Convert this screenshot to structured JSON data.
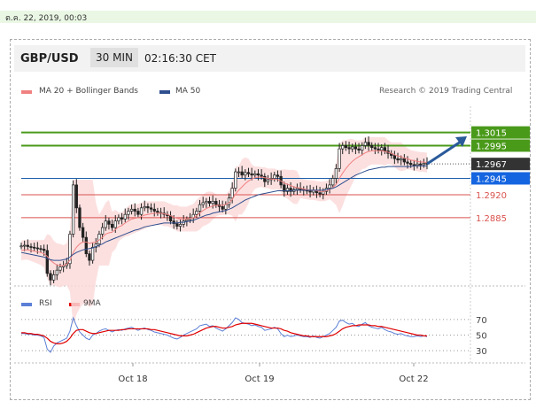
{
  "date_bar": "ต.ค. 22, 2019, 00:03",
  "header": {
    "pair": "GBP/USD",
    "timeframe": "30 MIN",
    "time": "02:16:30 CET"
  },
  "legend": {
    "ma20": "MA 20 + Bollinger Bands",
    "ma50": "MA 50",
    "credit": "Research © 2019 Trading Central",
    "rsi": "RSI",
    "rsi_ma": "9MA"
  },
  "colors": {
    "candle": "#222222",
    "bollinger_fill": "#fbdada",
    "ma20": "#f08080",
    "ma50": "#2f4f8f",
    "resistance": "#4a9a1a",
    "pivot": "#1b5faa",
    "support": "#d9534f",
    "last_price": "#333333",
    "rsi": "#5b7fd6",
    "rsi_ma": "#e00000",
    "arrow": "#2a5a9a"
  },
  "chart_data": {
    "type": "candlestick",
    "x_tick_labels": [
      "Oct 18",
      "Oct 19",
      "Oct 22"
    ],
    "price_levels": [
      {
        "value": 1.3015,
        "label": "1.3015",
        "kind": "resistance"
      },
      {
        "value": 1.2995,
        "label": "1.2995",
        "kind": "resistance"
      },
      {
        "value": 1.2967,
        "label": "1.2967",
        "kind": "last"
      },
      {
        "value": 1.2945,
        "label": "1.2945",
        "kind": "pivot"
      },
      {
        "value": 1.292,
        "label": "1.2920",
        "kind": "support"
      },
      {
        "value": 1.2885,
        "label": "1.2885",
        "kind": "support"
      }
    ],
    "y_range": [
      1.2785,
      1.3055
    ],
    "close": [
      1.2842,
      1.2843,
      1.2841,
      1.284,
      1.2839,
      1.2838,
      1.2837,
      1.2835,
      1.28,
      1.279,
      1.2798,
      1.2805,
      1.281,
      1.2812,
      1.2815,
      1.286,
      1.2935,
      1.29,
      1.287,
      1.2855,
      1.283,
      1.282,
      1.284,
      1.2845,
      1.286,
      1.287,
      1.288,
      1.2875,
      1.287,
      1.288,
      1.2885,
      1.2883,
      1.289,
      1.2895,
      1.2898,
      1.2895,
      1.289,
      1.29,
      1.2902,
      1.29,
      1.2898,
      1.2895,
      1.2893,
      1.2892,
      1.289,
      1.2888,
      1.288,
      1.2876,
      1.2872,
      1.2875,
      1.288,
      1.2882,
      1.2885,
      1.289,
      1.2895,
      1.2905,
      1.2908,
      1.291,
      1.2907,
      1.291,
      1.2905,
      1.2902,
      1.2898,
      1.2905,
      1.2915,
      1.293,
      1.2955,
      1.2955,
      1.295,
      1.2954,
      1.2952,
      1.295,
      1.2952,
      1.295,
      1.2948,
      1.294,
      1.2943,
      1.2945,
      1.295,
      1.2948,
      1.2935,
      1.2925,
      1.293,
      1.2925,
      1.2928,
      1.293,
      1.2928,
      1.2927,
      1.2926,
      1.2924,
      1.2927,
      1.2923,
      1.2921,
      1.2925,
      1.293,
      1.2935,
      1.2945,
      1.296,
      1.299,
      1.2995,
      1.2992,
      1.299,
      1.2993,
      1.299,
      1.2988,
      1.2995,
      1.3,
      1.2995,
      1.2992,
      1.299,
      1.2988,
      1.2992,
      1.2987,
      1.2983,
      1.298,
      1.2975,
      1.2973,
      1.2975,
      1.297,
      1.2968,
      1.2966,
      1.2965,
      1.2967,
      1.2966,
      1.2968,
      1.2967
    ],
    "ma20": [
      1.2835,
      1.2836,
      1.2836,
      1.2835,
      1.2834,
      1.2833,
      1.2832,
      1.283,
      1.2826,
      1.282,
      1.2816,
      1.2813,
      1.2812,
      1.2812,
      1.2814,
      1.282,
      1.2832,
      1.284,
      1.2845,
      1.2848,
      1.2848,
      1.2846,
      1.2847,
      1.2848,
      1.2851,
      1.2855,
      1.286,
      1.2862,
      1.2863,
      1.2867,
      1.2871,
      1.2873,
      1.2877,
      1.288,
      1.2883,
      1.2884,
      1.2885,
      1.2887,
      1.2889,
      1.289,
      1.2891,
      1.2892,
      1.2892,
      1.2892,
      1.2891,
      1.289,
      1.2888,
      1.2886,
      1.2884,
      1.2883,
      1.2883,
      1.2883,
      1.2884,
      1.2885,
      1.2888,
      1.2892,
      1.2896,
      1.2899,
      1.2901,
      1.2903,
      1.2904,
      1.2904,
      1.2904,
      1.2905,
      1.2908,
      1.2913,
      1.2921,
      1.2927,
      1.2932,
      1.2937,
      1.2941,
      1.2944,
      1.2946,
      1.2947,
      1.2947,
      1.2946,
      1.2945,
      1.2944,
      1.2944,
      1.2943,
      1.2941,
      1.2938,
      1.2936,
      1.2934,
      1.2932,
      1.2931,
      1.293,
      1.2929,
      1.2928,
      1.2927,
      1.2927,
      1.2926,
      1.2925,
      1.2925,
      1.2926,
      1.2928,
      1.2931,
      1.2936,
      1.2945,
      1.2953,
      1.296,
      1.2966,
      1.2971,
      1.2975,
      1.2978,
      1.2981,
      1.2984,
      1.2986,
      1.2987,
      1.2987,
      1.2987,
      1.2987,
      1.2986,
      1.2985,
      1.2983,
      1.2981,
      1.2979,
      1.2978,
      1.2976,
      1.2975,
      1.2973,
      1.2972,
      1.2971,
      1.297,
      1.297,
      1.2969
    ],
    "ma50": [
      1.2832,
      1.2831,
      1.283,
      1.2829,
      1.2828,
      1.2827,
      1.2826,
      1.2825,
      1.2823,
      1.2821,
      1.282,
      1.282,
      1.282,
      1.2821,
      1.2822,
      1.2825,
      1.2829,
      1.2832,
      1.2834,
      1.2836,
      1.2837,
      1.2838,
      1.2839,
      1.2841,
      1.2843,
      1.2845,
      1.2848,
      1.285,
      1.2852,
      1.2854,
      1.2856,
      1.2858,
      1.286,
      1.2862,
      1.2864,
      1.2866,
      1.2867,
      1.2869,
      1.2871,
      1.2872,
      1.2873,
      1.2874,
      1.2875,
      1.2876,
      1.2877,
      1.2877,
      1.2877,
      1.2877,
      1.2877,
      1.2878,
      1.2878,
      1.2879,
      1.288,
      1.2881,
      1.2883,
      1.2885,
      1.2887,
      1.2889,
      1.289,
      1.2892,
      1.2893,
      1.2894,
      1.2895,
      1.2896,
      1.2898,
      1.29,
      1.2903,
      1.2906,
      1.2909,
      1.2912,
      1.2914,
      1.2916,
      1.2918,
      1.292,
      1.2921,
      1.2922,
      1.2923,
      1.2924,
      1.2925,
      1.2926,
      1.2926,
      1.2926,
      1.2926,
      1.2926,
      1.2927,
      1.2927,
      1.2927,
      1.2927,
      1.2927,
      1.2927,
      1.2927,
      1.2927,
      1.2927,
      1.2927,
      1.2928,
      1.2929,
      1.293,
      1.2932,
      1.2935,
      1.2938,
      1.2941,
      1.2944,
      1.2947,
      1.295,
      1.2952,
      1.2954,
      1.2956,
      1.2958,
      1.2959,
      1.296,
      1.2961,
      1.2962,
      1.2962,
      1.2963,
      1.2963,
      1.2963,
      1.2963,
      1.2963,
      1.2963,
      1.2963,
      1.2963,
      1.2964,
      1.2964,
      1.2964,
      1.2964,
      1.2964
    ],
    "rsi": {
      "y_ticks": [
        70,
        50,
        30
      ],
      "y_range": [
        20,
        80
      ],
      "rsi": [
        52,
        52,
        51,
        51,
        50,
        50,
        49,
        47,
        32,
        28,
        36,
        40,
        42,
        44,
        46,
        55,
        72,
        62,
        54,
        50,
        46,
        44,
        50,
        52,
        55,
        57,
        58,
        56,
        54,
        56,
        57,
        56,
        58,
        59,
        60,
        58,
        56,
        58,
        59,
        57,
        56,
        54,
        53,
        52,
        51,
        50,
        48,
        46,
        45,
        47,
        50,
        52,
        54,
        56,
        58,
        62,
        63,
        64,
        61,
        62,
        59,
        57,
        55,
        58,
        62,
        66,
        72,
        70,
        66,
        65,
        64,
        62,
        63,
        61,
        60,
        56,
        57,
        58,
        60,
        58,
        52,
        48,
        50,
        48,
        49,
        50,
        49,
        48,
        48,
        47,
        49,
        47,
        46,
        48,
        50,
        52,
        56,
        60,
        68,
        69,
        66,
        64,
        65,
        62,
        61,
        64,
        66,
        62,
        60,
        59,
        58,
        60,
        57,
        55,
        54,
        52,
        51,
        52,
        50,
        49,
        48,
        48,
        49,
        48,
        49,
        48
      ],
      "ma": [
        53,
        53,
        52,
        52,
        51,
        51,
        50,
        49,
        46,
        42,
        40,
        39,
        39,
        40,
        42,
        46,
        52,
        56,
        57,
        57,
        55,
        53,
        52,
        52,
        53,
        54,
        55,
        56,
        56,
        56,
        56,
        57,
        57,
        58,
        58,
        58,
        58,
        58,
        58,
        58,
        57,
        57,
        56,
        55,
        54,
        53,
        52,
        51,
        50,
        49,
        49,
        49,
        50,
        51,
        53,
        55,
        57,
        59,
        60,
        61,
        61,
        60,
        59,
        59,
        60,
        61,
        63,
        64,
        65,
        65,
        65,
        65,
        64,
        63,
        62,
        61,
        60,
        59,
        59,
        59,
        58,
        56,
        55,
        53,
        52,
        51,
        50,
        49,
        49,
        48,
        48,
        48,
        48,
        48,
        48,
        49,
        50,
        52,
        55,
        58,
        60,
        61,
        62,
        62,
        63,
        63,
        63,
        63,
        62,
        62,
        61,
        61,
        60,
        59,
        58,
        57,
        56,
        55,
        54,
        53,
        52,
        51,
        50,
        50,
        49,
        49
      ]
    }
  }
}
